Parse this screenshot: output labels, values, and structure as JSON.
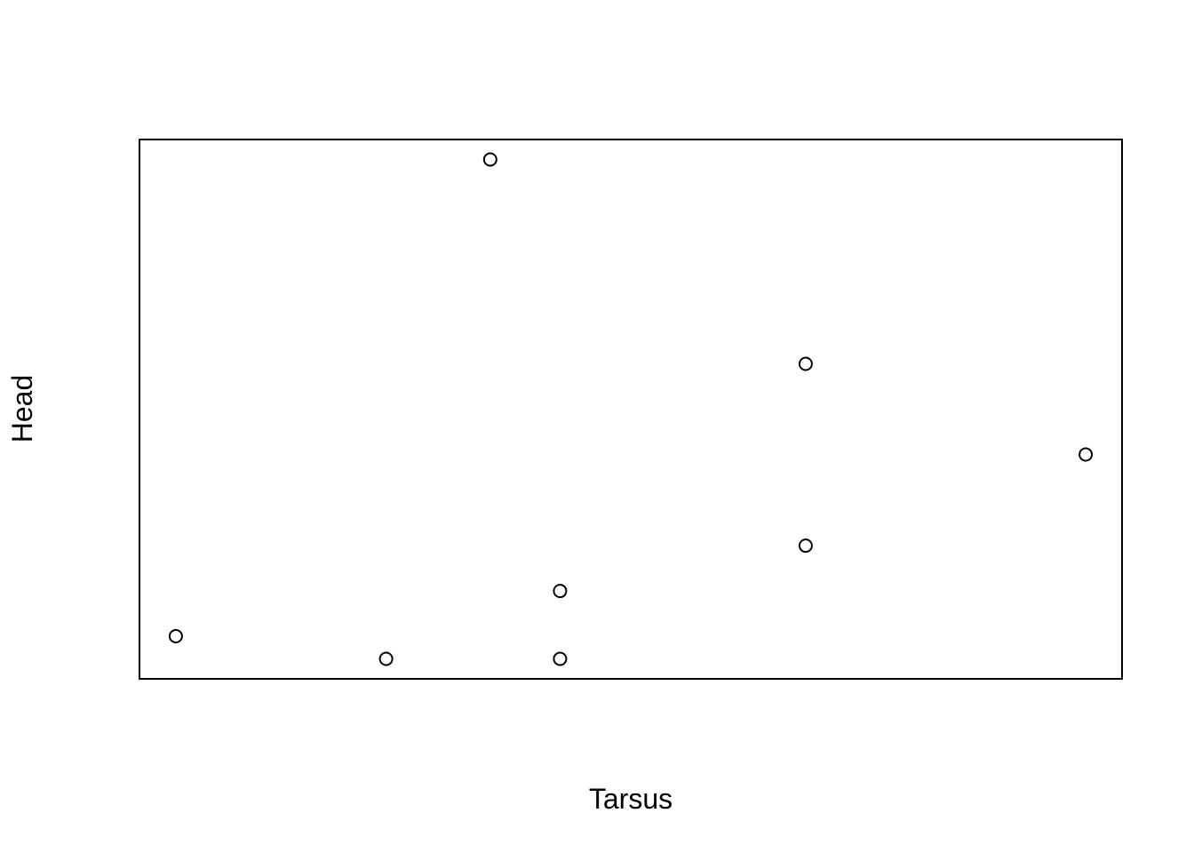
{
  "chart_data": {
    "type": "scatter",
    "xlabel": "Tarsus",
    "ylabel": "Head",
    "axes_shown": false,
    "grid": false,
    "xlim": [
      0,
      1
    ],
    "ylim": [
      0,
      1
    ],
    "points": [
      {
        "x": 0.037,
        "y": 0.079
      },
      {
        "x": 0.251,
        "y": 0.037
      },
      {
        "x": 0.357,
        "y": 0.963
      },
      {
        "x": 0.428,
        "y": 0.037
      },
      {
        "x": 0.428,
        "y": 0.163
      },
      {
        "x": 0.678,
        "y": 0.584
      },
      {
        "x": 0.678,
        "y": 0.247
      },
      {
        "x": 0.963,
        "y": 0.416
      }
    ],
    "marker": "open-circle",
    "point_color": "#000000"
  }
}
